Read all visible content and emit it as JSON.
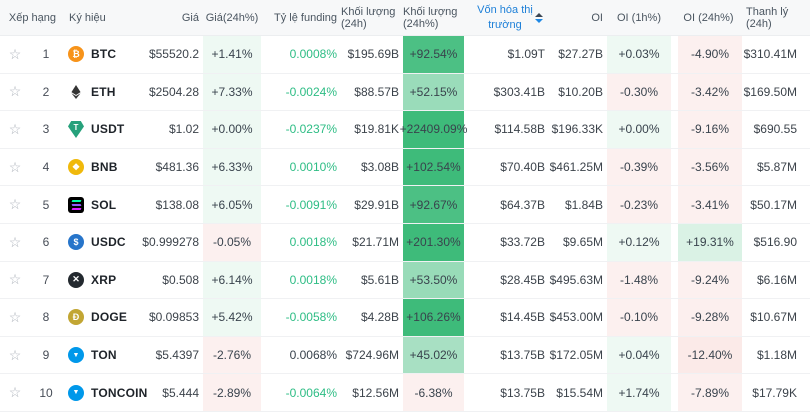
{
  "table": {
    "headers": {
      "rank": "Xếp hạng",
      "symbol": "Ký hiệu",
      "price": "Giá",
      "price_chg": "Giá(24h%)",
      "funding": "Tỷ lệ funding",
      "volume": "Khối lượng (24h)",
      "volume_chg": "Khối lượng (24h%)",
      "mcap": "Vốn hóa thị trường",
      "oi": "OI",
      "oi_1h": "OI (1h%)",
      "oi_24h": "OI (24h%)",
      "liq": "Thanh lý (24h)"
    },
    "sort": {
      "column": "mcap",
      "direction": "desc"
    },
    "colors": {
      "pos_tint_rgb": "62,187,122",
      "neg_tint_rgb": "224,84,73",
      "funding_green": "#2ebd85",
      "funding_dark": "#39434d",
      "accent_blue": "#1e80d8"
    },
    "rows": [
      {
        "rank": "1",
        "symbol": "BTC",
        "icon": {
          "type": "circle",
          "bg": "#f7931a",
          "glyph": "₿"
        },
        "price": "$55520.2",
        "price_chg": {
          "text": "+1.41%",
          "value": 1.41
        },
        "funding": {
          "text": "0.0008%",
          "color": "green"
        },
        "volume": "$195.69B",
        "volume_chg": {
          "text": "+92.54%",
          "value": 92.54
        },
        "mcap": "$1.09T",
        "oi": "$27.27B",
        "oi_1h": {
          "text": "+0.03%",
          "value": 0.03
        },
        "oi_24h": {
          "text": "-4.90%",
          "value": -4.9
        },
        "liq": "$310.41M"
      },
      {
        "rank": "2",
        "symbol": "ETH",
        "icon": {
          "type": "eth"
        },
        "price": "$2504.28",
        "price_chg": {
          "text": "+7.33%",
          "value": 7.33
        },
        "funding": {
          "text": "-0.0024%",
          "color": "green"
        },
        "volume": "$88.57B",
        "volume_chg": {
          "text": "+52.15%",
          "value": 52.15
        },
        "mcap": "$303.41B",
        "oi": "$10.20B",
        "oi_1h": {
          "text": "-0.30%",
          "value": -0.3
        },
        "oi_24h": {
          "text": "-3.42%",
          "value": -3.42
        },
        "liq": "$169.50M"
      },
      {
        "rank": "3",
        "symbol": "USDT",
        "icon": {
          "type": "usdt",
          "bg": "#26a17b",
          "glyph": "T"
        },
        "price": "$1.02",
        "price_chg": {
          "text": "+0.00%",
          "value": 0
        },
        "funding": {
          "text": "-0.0237%",
          "color": "green"
        },
        "volume": "$19.81K",
        "volume_chg": {
          "text": "+22409.09%",
          "value": 22409.09
        },
        "mcap": "$114.58B",
        "oi": "$196.33K",
        "oi_1h": {
          "text": "+0.00%",
          "value": 0
        },
        "oi_24h": {
          "text": "-9.16%",
          "value": -9.16
        },
        "liq": "$690.55"
      },
      {
        "rank": "4",
        "symbol": "BNB",
        "icon": {
          "type": "circle",
          "bg": "#f0b90b",
          "glyph": "❖"
        },
        "price": "$481.36",
        "price_chg": {
          "text": "+6.33%",
          "value": 6.33
        },
        "funding": {
          "text": "0.0010%",
          "color": "green"
        },
        "volume": "$3.08B",
        "volume_chg": {
          "text": "+102.54%",
          "value": 102.54
        },
        "mcap": "$70.40B",
        "oi": "$461.25M",
        "oi_1h": {
          "text": "-0.39%",
          "value": -0.39
        },
        "oi_24h": {
          "text": "-3.56%",
          "value": -3.56
        },
        "liq": "$5.87M"
      },
      {
        "rank": "5",
        "symbol": "SOL",
        "icon": {
          "type": "sol"
        },
        "price": "$138.08",
        "price_chg": {
          "text": "+6.05%",
          "value": 6.05
        },
        "funding": {
          "text": "-0.0091%",
          "color": "green"
        },
        "volume": "$29.91B",
        "volume_chg": {
          "text": "+92.67%",
          "value": 92.67
        },
        "mcap": "$64.37B",
        "oi": "$1.84B",
        "oi_1h": {
          "text": "-0.23%",
          "value": -0.23
        },
        "oi_24h": {
          "text": "-3.41%",
          "value": -3.41
        },
        "liq": "$50.17M"
      },
      {
        "rank": "6",
        "symbol": "USDC",
        "icon": {
          "type": "circle",
          "bg": "#2775ca",
          "glyph": "$"
        },
        "price": "$0.999278",
        "price_chg": {
          "text": "-0.05%",
          "value": -0.05
        },
        "funding": {
          "text": "0.0018%",
          "color": "green"
        },
        "volume": "$21.71M",
        "volume_chg": {
          "text": "+201.30%",
          "value": 201.3
        },
        "mcap": "$33.72B",
        "oi": "$9.65M",
        "oi_1h": {
          "text": "+0.12%",
          "value": 0.12
        },
        "oi_24h": {
          "text": "+19.31%",
          "value": 19.31
        },
        "liq": "$516.90"
      },
      {
        "rank": "7",
        "symbol": "XRP",
        "icon": {
          "type": "circle",
          "bg": "#23292f",
          "glyph": "✕"
        },
        "price": "$0.508",
        "price_chg": {
          "text": "+6.14%",
          "value": 6.14
        },
        "funding": {
          "text": "0.0018%",
          "color": "green"
        },
        "volume": "$5.61B",
        "volume_chg": {
          "text": "+53.50%",
          "value": 53.5
        },
        "mcap": "$28.45B",
        "oi": "$495.63M",
        "oi_1h": {
          "text": "-1.48%",
          "value": -1.48
        },
        "oi_24h": {
          "text": "-9.24%",
          "value": -9.24
        },
        "liq": "$6.16M"
      },
      {
        "rank": "8",
        "symbol": "DOGE",
        "icon": {
          "type": "circle",
          "bg": "#c2a633",
          "glyph": "Ð"
        },
        "price": "$0.09853",
        "price_chg": {
          "text": "+5.42%",
          "value": 5.42
        },
        "funding": {
          "text": "-0.0058%",
          "color": "green"
        },
        "volume": "$4.28B",
        "volume_chg": {
          "text": "+106.26%",
          "value": 106.26
        },
        "mcap": "$14.45B",
        "oi": "$453.00M",
        "oi_1h": {
          "text": "-0.10%",
          "value": -0.1
        },
        "oi_24h": {
          "text": "-9.28%",
          "value": -9.28
        },
        "liq": "$10.67M"
      },
      {
        "rank": "9",
        "symbol": "TON",
        "icon": {
          "type": "circle",
          "bg": "#0098ea",
          "glyph": "▼"
        },
        "price": "$5.4397",
        "price_chg": {
          "text": "-2.76%",
          "value": -2.76
        },
        "funding": {
          "text": "0.0068%",
          "color": "dark"
        },
        "volume": "$724.96M",
        "volume_chg": {
          "text": "+45.02%",
          "value": 45.02
        },
        "mcap": "$13.75B",
        "oi": "$172.05M",
        "oi_1h": {
          "text": "+0.04%",
          "value": 0.04
        },
        "oi_24h": {
          "text": "-12.40%",
          "value": -12.4
        },
        "liq": "$1.18M"
      },
      {
        "rank": "10",
        "symbol": "TONCOIN",
        "icon": {
          "type": "circle",
          "bg": "#0098ea",
          "glyph": "▼"
        },
        "price": "$5.444",
        "price_chg": {
          "text": "-2.89%",
          "value": -2.89
        },
        "funding": {
          "text": "-0.0064%",
          "color": "green"
        },
        "volume": "$12.56M",
        "volume_chg": {
          "text": "-6.38%",
          "value": -6.38
        },
        "mcap": "$13.75B",
        "oi": "$15.54M",
        "oi_1h": {
          "text": "+1.74%",
          "value": 1.74
        },
        "oi_24h": {
          "text": "-7.89%",
          "value": -7.89
        },
        "liq": "$17.79K"
      }
    ]
  }
}
